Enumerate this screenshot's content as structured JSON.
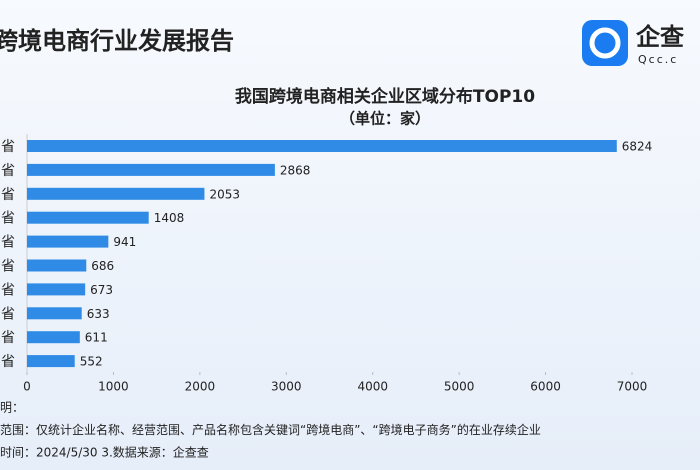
{
  "header": {
    "title": "跨境电商行业发展报告"
  },
  "logo": {
    "name": "企查",
    "domain": "Qcc.c"
  },
  "chart_data": {
    "type": "bar",
    "orientation": "horizontal",
    "title": "我国跨境电商相关企业区域分布TOP10",
    "subtitle": "（单位：家）",
    "categories": [
      "省",
      "省",
      "省",
      "省",
      "省",
      "省",
      "省",
      "省",
      "省",
      "省"
    ],
    "values": [
      6824,
      2868,
      2053,
      1408,
      941,
      686,
      673,
      633,
      611,
      552
    ],
    "color": "#2f8be6",
    "xlim": [
      0,
      7000
    ],
    "xticks": [
      0,
      1000,
      2000,
      3000,
      4000,
      5000,
      6000,
      7000
    ]
  },
  "notes": [
    "明：",
    "范围：仅统计企业名称、经营范围、产品名称包含关键词“跨境电商”、“跨境电子商务”的在业存续企业",
    "时间：2024/5/30    3.数据来源：企查查"
  ]
}
